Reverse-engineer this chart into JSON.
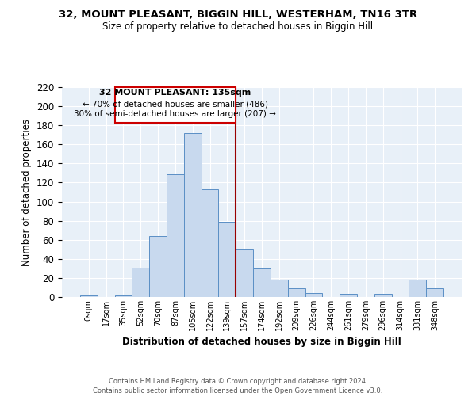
{
  "title": "32, MOUNT PLEASANT, BIGGIN HILL, WESTERHAM, TN16 3TR",
  "subtitle": "Size of property relative to detached houses in Biggin Hill",
  "xlabel": "Distribution of detached houses by size in Biggin Hill",
  "ylabel": "Number of detached properties",
  "bar_labels": [
    "0sqm",
    "17sqm",
    "35sqm",
    "52sqm",
    "70sqm",
    "87sqm",
    "105sqm",
    "122sqm",
    "139sqm",
    "157sqm",
    "174sqm",
    "192sqm",
    "209sqm",
    "226sqm",
    "244sqm",
    "261sqm",
    "279sqm",
    "296sqm",
    "314sqm",
    "331sqm",
    "348sqm"
  ],
  "bar_heights": [
    2,
    0,
    2,
    31,
    64,
    129,
    172,
    113,
    79,
    50,
    30,
    18,
    9,
    4,
    0,
    3,
    0,
    3,
    0,
    18,
    9
  ],
  "bar_color": "#c8d9ee",
  "bar_edge_color": "#5b8fc5",
  "reference_line_x": 8.5,
  "reference_line_color": "#990000",
  "annotation_line1": "32 MOUNT PLEASANT: 135sqm",
  "annotation_line2": "← 70% of detached houses are smaller (486)",
  "annotation_line3": "30% of semi-detached houses are larger (207) →",
  "annotation_box_color": "#cc0000",
  "ylim": [
    0,
    220
  ],
  "yticks": [
    0,
    20,
    40,
    60,
    80,
    100,
    120,
    140,
    160,
    180,
    200,
    220
  ],
  "footer_line1": "Contains HM Land Registry data © Crown copyright and database right 2024.",
  "footer_line2": "Contains public sector information licensed under the Open Government Licence v3.0.",
  "background_color": "#ffffff",
  "plot_bg_color": "#e8f0f8",
  "grid_color": "#ffffff"
}
